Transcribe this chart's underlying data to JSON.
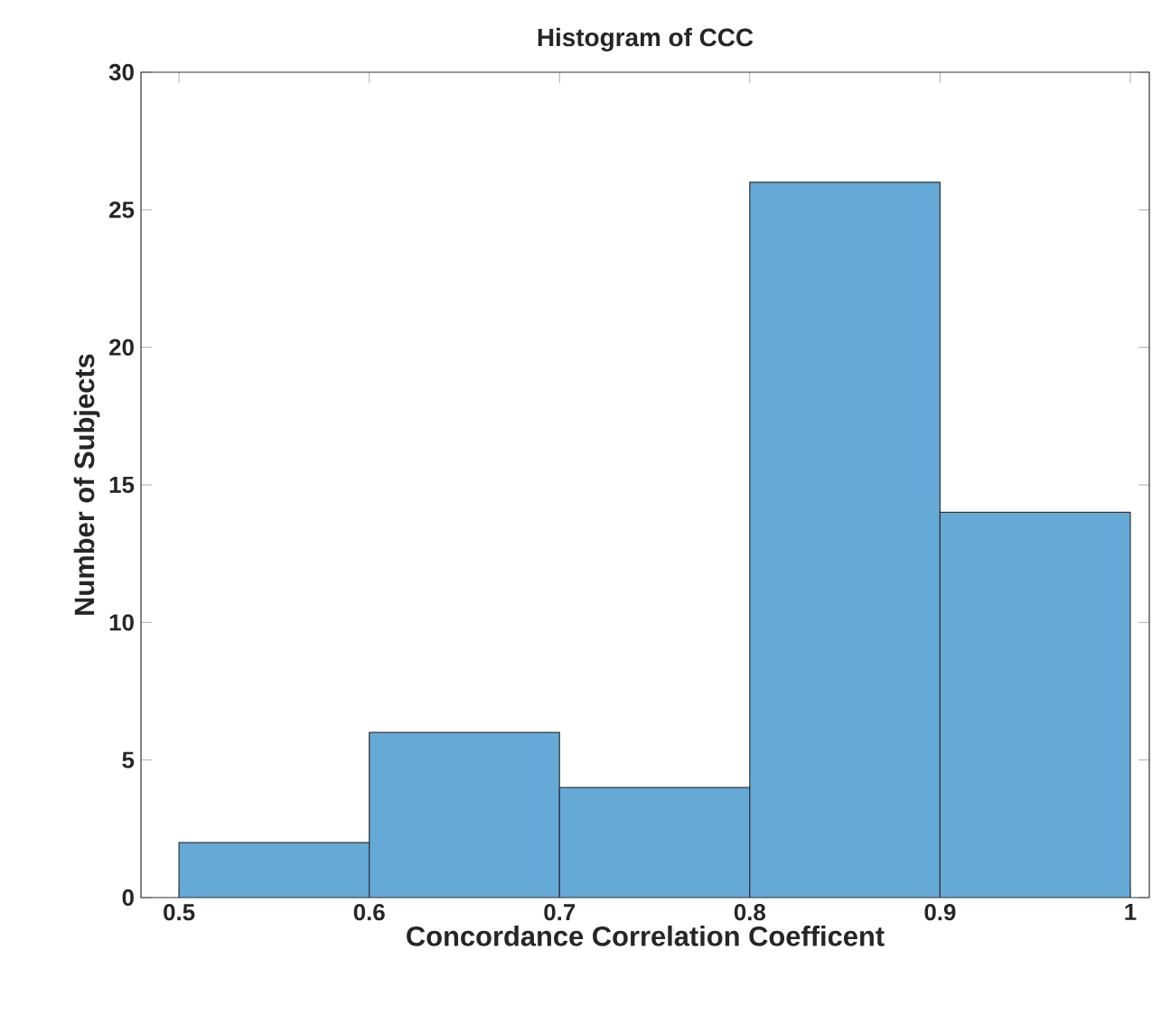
{
  "chart_data": {
    "type": "histogram",
    "title": "Histogram of CCC",
    "xlabel": "Concordance Correlation Coefficent",
    "ylabel": "Number of Subjects",
    "bins": [
      0.5,
      0.6,
      0.7,
      0.8,
      0.9,
      1.0
    ],
    "values": [
      2,
      6,
      4,
      26,
      14
    ],
    "color": "#65a9d7",
    "xlim": [
      0.48,
      1.01
    ],
    "ylim": [
      0,
      30
    ],
    "xticks": [
      0.5,
      0.6,
      0.7,
      0.8,
      0.9,
      1
    ],
    "yticks": [
      0,
      5,
      10,
      15,
      20,
      25,
      30
    ]
  }
}
